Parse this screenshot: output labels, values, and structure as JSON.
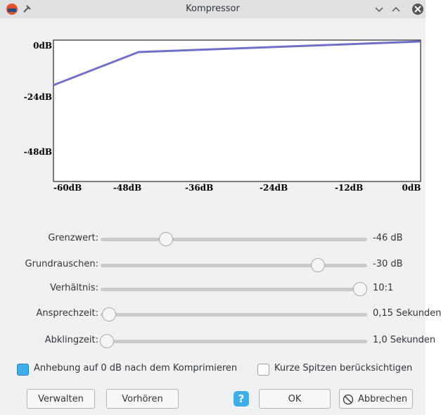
{
  "window": {
    "title": "Kompressor"
  },
  "graph": {
    "y_labels": [
      "0dB",
      "-24dB",
      "-48dB"
    ],
    "x_labels": [
      "-60dB",
      "-48dB",
      "-36dB",
      "-24dB",
      "-12dB",
      "0dB"
    ]
  },
  "sliders": [
    {
      "label": "Grenzwert:",
      "value": "-46 dB"
    },
    {
      "label": "Grundrauschen:",
      "value": "-30 dB"
    },
    {
      "label": "Verhältnis:",
      "value": "10:1"
    },
    {
      "label": "Ansprechzeit:",
      "value": "0,15 Sekunden"
    },
    {
      "label": "Abklingzeit:",
      "value": "1,0 Sekunden"
    }
  ],
  "checkboxes": [
    {
      "label": "Anhebung auf 0 dB nach dem Komprimieren",
      "checked": true
    },
    {
      "label": "Kurze Spitzen berücksichtigen",
      "checked": false
    }
  ],
  "buttons": {
    "manage": "Verwalten",
    "preview": "Vorhören",
    "ok": "OK",
    "cancel": "Abbrechen"
  }
}
